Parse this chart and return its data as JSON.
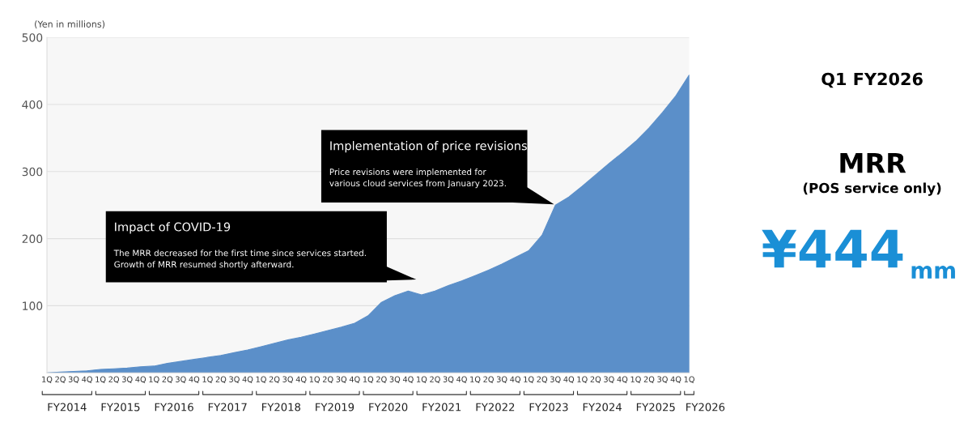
{
  "chart_data": {
    "type": "area",
    "ylabel": "(Yen in millions)",
    "categories": [
      "1Q",
      "2Q",
      "3Q",
      "4Q",
      "1Q",
      "2Q",
      "3Q",
      "4Q",
      "1Q",
      "2Q",
      "3Q",
      "4Q",
      "1Q",
      "2Q",
      "3Q",
      "4Q",
      "1Q",
      "2Q",
      "3Q",
      "4Q",
      "1Q",
      "2Q",
      "3Q",
      "4Q",
      "1Q",
      "2Q",
      "3Q",
      "4Q",
      "1Q",
      "2Q",
      "3Q",
      "4Q",
      "1Q",
      "2Q",
      "3Q",
      "4Q",
      "1Q",
      "2Q",
      "3Q",
      "4Q",
      "1Q",
      "2Q",
      "3Q",
      "4Q",
      "1Q",
      "2Q",
      "3Q",
      "4Q",
      "1Q"
    ],
    "series": [
      {
        "color": "#5b8fc9",
        "values": [
          0,
          1,
          2,
          3,
          5,
          6,
          7,
          9,
          10,
          14,
          17,
          20,
          23,
          26,
          30,
          34,
          39,
          44,
          49,
          53,
          58,
          63,
          68,
          74,
          85,
          105,
          115,
          122,
          116,
          122,
          130,
          137,
          145,
          153,
          162,
          172,
          182,
          205,
          250,
          262,
          278,
          295,
          312,
          328,
          345,
          365,
          388,
          413,
          444
        ]
      }
    ],
    "ylim": [
      0,
      500
    ],
    "yticks": [
      {
        "value": 0,
        "label": null
      },
      100,
      200,
      300,
      400,
      500
    ],
    "grid": "y",
    "annotations": [
      "FY2014",
      "FY2015",
      "FY2016",
      "FY2017",
      "FY2018",
      "FY2019",
      "FY2020",
      "FY2021",
      "FY2022",
      "FY2023",
      "FY2024",
      "FY2025",
      "FY2026",
      "Impact of COVID-19",
      "The MRR decreased for the first time since services started.\nGrowth of MRR resumed shortly afterward.",
      "Implementation of price revisions",
      "Price revisions were implemented for\nvarious cloud services from January 2023.",
      "Q1 FY2026",
      "MRR",
      "(POS service only)",
      "¥444",
      "mm"
    ]
  }
}
